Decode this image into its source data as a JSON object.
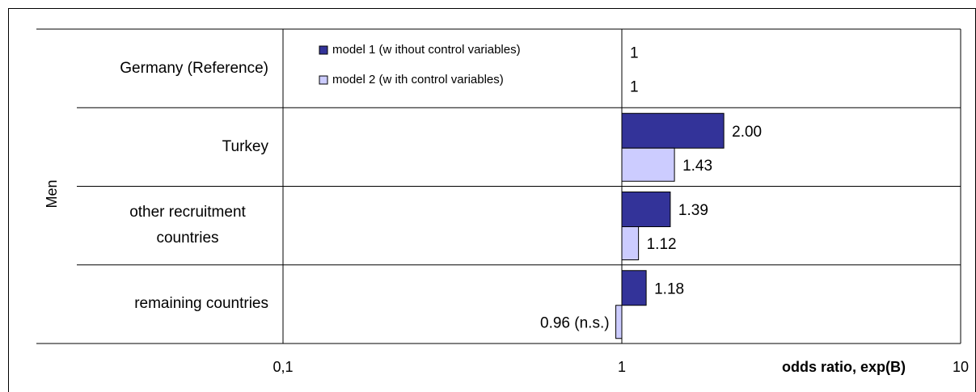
{
  "chart_data": {
    "type": "barh",
    "y_group_label": "Men",
    "x_label": "odds ratio, exp(B)",
    "categories": [
      "Germany (Reference)",
      "Turkey",
      "other recruitment countries",
      "remaining countries"
    ],
    "series": [
      {
        "name": "model 1 (w ithout control variables)",
        "color": "#333399",
        "values": [
          1,
          2,
          1.39,
          1.18
        ],
        "value_labels": [
          "1",
          "2.00",
          "1.39",
          "1.18"
        ]
      },
      {
        "name": "model 2 (w ith control variables)",
        "color": "#ccccff",
        "values": [
          1,
          1.43,
          1.12,
          0.96
        ],
        "value_labels": [
          "1",
          "1.43",
          "1.12",
          "0.96 (n.s.)"
        ]
      }
    ],
    "xlim": [
      0.1,
      10
    ],
    "xticks": [
      {
        "value": 0.1,
        "label": "0,1"
      },
      1,
      10
    ],
    "log_x": true,
    "grid": true,
    "legend": "top-left"
  }
}
